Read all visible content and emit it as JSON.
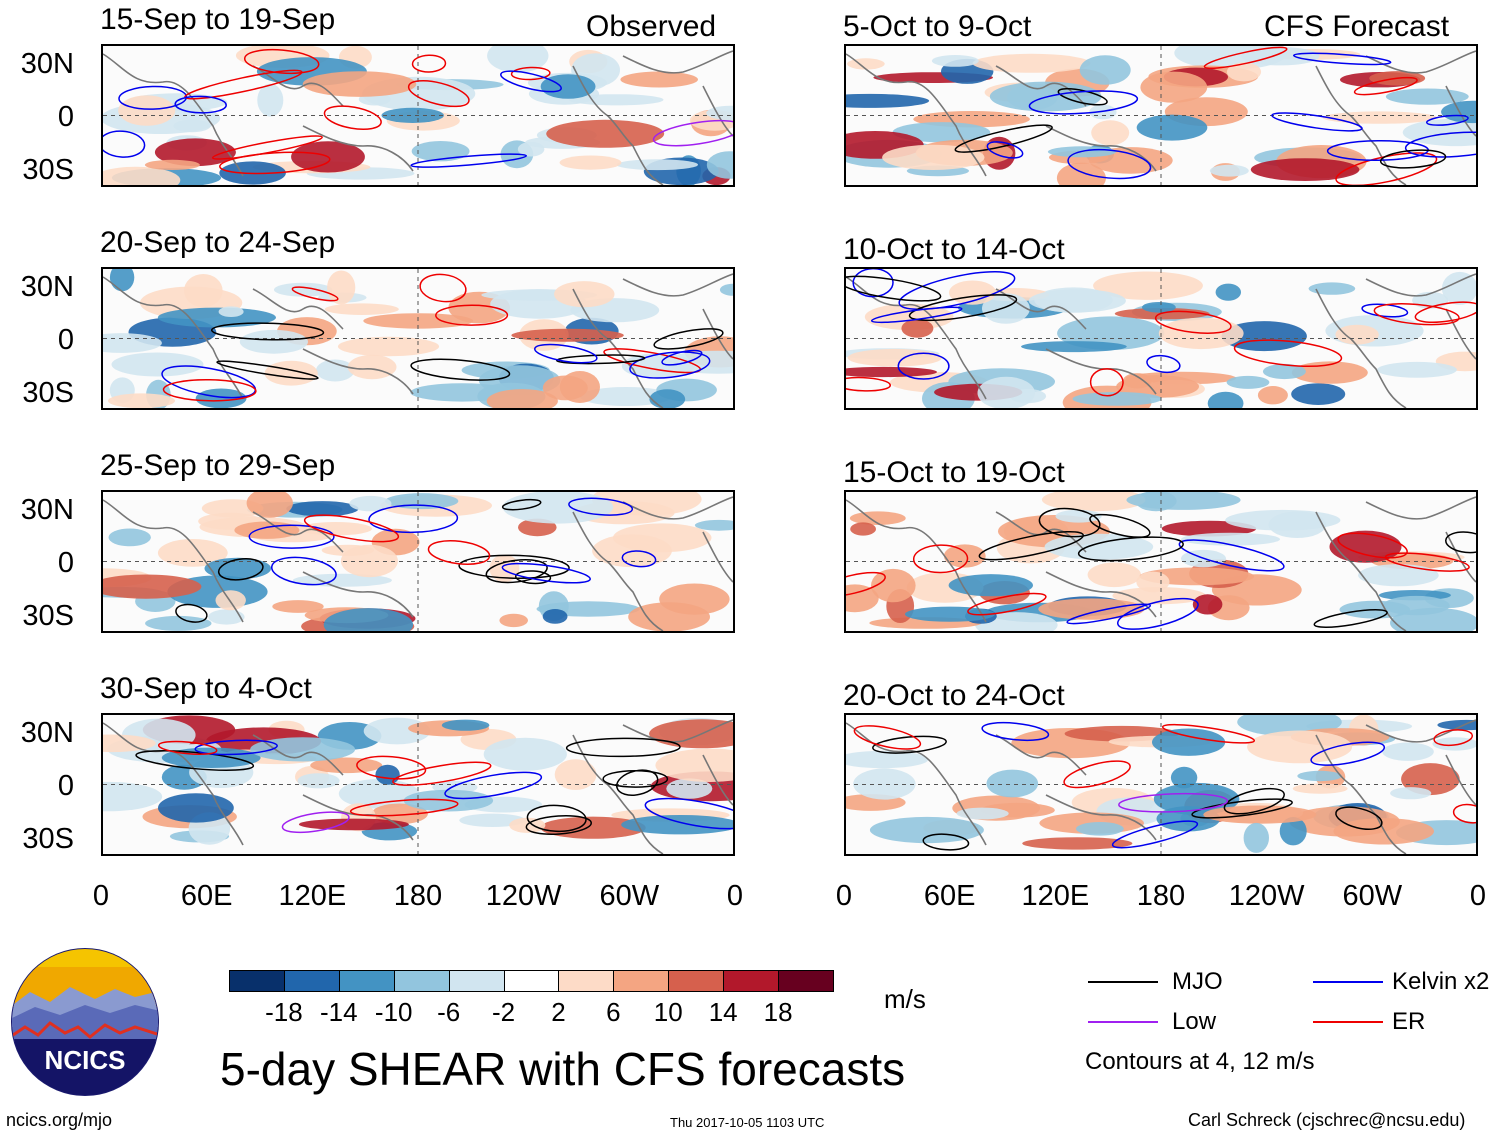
{
  "panel_header": {
    "observed_label": "Observed",
    "forecast_label": "CFS Forecast"
  },
  "lat_labels": [
    "30N",
    "0",
    "30S"
  ],
  "lon_labels": [
    "0",
    "60E",
    "120E",
    "180",
    "120W",
    "60W",
    "0"
  ],
  "colorbar": {
    "ticks": [
      "-18",
      "-14",
      "-10",
      "-6",
      "-2",
      "2",
      "6",
      "10",
      "14",
      "18"
    ],
    "colors": [
      "#08306b",
      "#2166ac",
      "#4393c3",
      "#92c5de",
      "#d1e5f0",
      "#ffffff",
      "#fddbc7",
      "#f4a582",
      "#d6604d",
      "#b2182b",
      "#67001f"
    ],
    "units": "m/s"
  },
  "legend": {
    "items": [
      {
        "label": "MJO",
        "color": "#000000"
      },
      {
        "label": "Kelvin x2",
        "color": "#0000ee"
      },
      {
        "label": "Low",
        "color": "#a020f0"
      },
      {
        "label": "ER",
        "color": "#ee0000"
      }
    ],
    "note": "Contours at 4, 12 m/s"
  },
  "main_title": "5-day SHEAR with CFS forecasts",
  "logo": {
    "text": "NCICS"
  },
  "footer": {
    "url": "ncics.org/mjo",
    "timestamp": "Thu 2017-10-05 1103 UTC",
    "author": "Carl Schreck (cjschrec@ncsu.edu)"
  },
  "chart_data": {
    "type": "heatmap",
    "variable": "5-day vertical wind shear anomaly",
    "units": "m/s",
    "lat_range": [
      "40S",
      "40N"
    ],
    "lon_range": [
      "0",
      "360"
    ],
    "observed_panels": [
      {
        "title": "15-Sep to 19-Sep"
      },
      {
        "title": "20-Sep to 24-Sep"
      },
      {
        "title": "25-Sep to 29-Sep"
      },
      {
        "title": "30-Sep to 4-Oct"
      }
    ],
    "forecast_panels": [
      {
        "title": "5-Oct to 9-Oct"
      },
      {
        "title": "10-Oct to 14-Oct"
      },
      {
        "title": "15-Oct to 19-Oct"
      },
      {
        "title": "20-Oct to 24-Oct"
      }
    ]
  }
}
